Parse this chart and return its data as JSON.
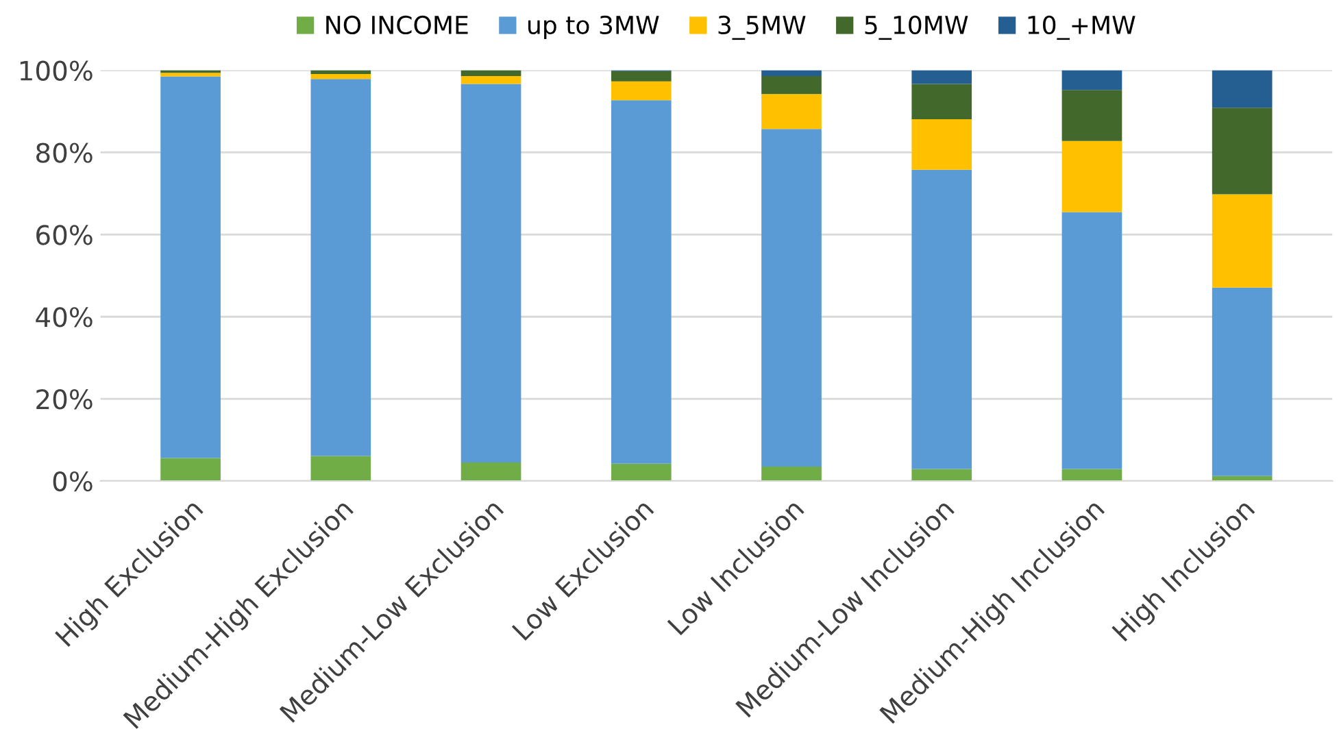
{
  "chart_data": {
    "type": "bar",
    "stacked": true,
    "categories": [
      "High Exclusion",
      "Medium-High Exclusion",
      "Medium-Low Exclusion",
      "Low Exclusion",
      "Low Inclusion",
      "Medium-Low Inclusion",
      "Medium-High Inclusion",
      "High Inclusion"
    ],
    "series": [
      {
        "name": "NO INCOME",
        "color": "#70ad47",
        "values": [
          5.6,
          6.1,
          4.5,
          4.2,
          3.5,
          2.9,
          2.9,
          1.2
        ]
      },
      {
        "name": "up to 3MW",
        "color": "#5b9bd5",
        "values": [
          92.9,
          91.8,
          92.2,
          88.5,
          82.2,
          72.9,
          62.6,
          45.9
        ]
      },
      {
        "name": "3_5MW",
        "color": "#ffc000",
        "values": [
          0.9,
          1.2,
          1.9,
          4.6,
          8.5,
          12.3,
          17.3,
          22.7
        ]
      },
      {
        "name": "5_10MW",
        "color": "#43682b",
        "values": [
          0.6,
          0.9,
          1.4,
          2.5,
          4.4,
          8.6,
          12.4,
          21.1
        ]
      },
      {
        "name": "10_+MW",
        "color": "#255e91",
        "values": [
          0,
          0,
          0,
          0.2,
          1.4,
          3.3,
          4.8,
          9.1
        ]
      }
    ],
    "ylim": [
      0,
      100
    ],
    "yticks": [
      {
        "value": 0,
        "label": "0%"
      },
      {
        "value": 20,
        "label": "20%"
      },
      {
        "value": 40,
        "label": "40%"
      },
      {
        "value": 60,
        "label": "60%"
      },
      {
        "value": 80,
        "label": "80%"
      },
      {
        "value": 100,
        "label": "100%"
      }
    ],
    "grid": "y",
    "legend": "top"
  }
}
